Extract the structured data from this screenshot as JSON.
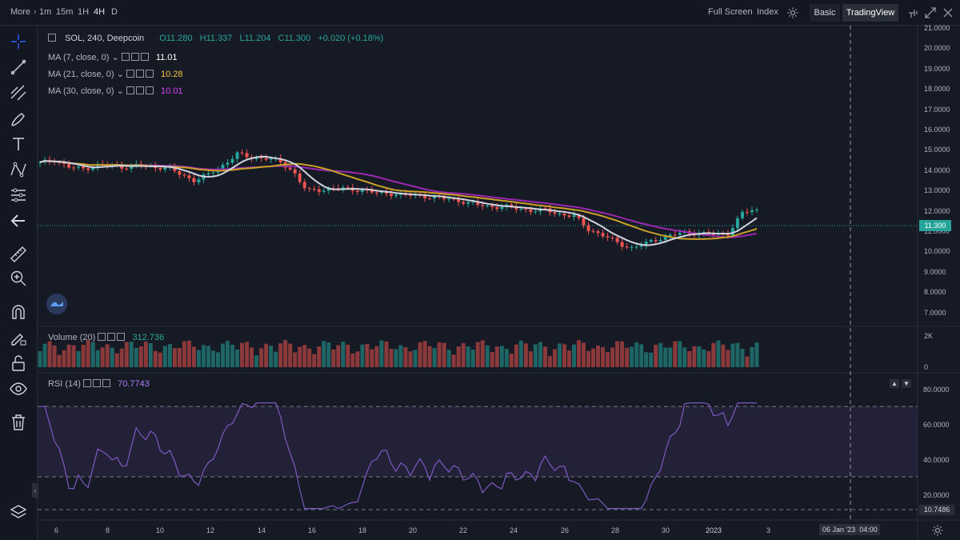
{
  "topbar": {
    "more": "More",
    "intervals": [
      "1m",
      "15m",
      "1H",
      "4H",
      "D"
    ],
    "active_interval": "4H",
    "full_screen": "Full Screen",
    "index": "Index",
    "basic": "Basic",
    "tradingview": "TradingView"
  },
  "legend": {
    "symbol": "SOL, 240, Deepcoin",
    "open": "O11.280",
    "high": "H11.337",
    "low": "L11.204",
    "close": "C11.300",
    "change": "+0.020 (+0.18%)",
    "ma7_label": "MA (7, close, 0)",
    "ma7_value": "11.01",
    "ma21_label": "MA (21, close, 0)",
    "ma21_value": "10.28",
    "ma30_label": "MA (30, close, 0)",
    "ma30_value": "10.01",
    "volume_label": "Volume (20)",
    "volume_value": "312.736",
    "rsi_label": "RSI (14)",
    "rsi_value": "70.7743"
  },
  "price_axis": [
    "21.0000",
    "20.0000",
    "19.0000",
    "18.0000",
    "17.0000",
    "16.0000",
    "15.0000",
    "14.0000",
    "13.0000",
    "12.0000",
    "11.0000",
    "10.0000",
    "9.0000",
    "8.0000",
    "7.0000"
  ],
  "last_price": "11.300",
  "volume_axis": [
    "2K",
    "0"
  ],
  "rsi_axis": [
    "80.0000",
    "60.0000",
    "40.0000",
    "20.0000"
  ],
  "rsi_cross": "10.7486",
  "time_axis": [
    "6",
    "8",
    "10",
    "12",
    "14",
    "16",
    "18",
    "20",
    "22",
    "24",
    "26",
    "28",
    "30",
    "2023",
    "3"
  ],
  "crosshair_time": "06 Jan '23",
  "crosshair_clock": "04:00",
  "colors": {
    "up": "#26a69a",
    "down": "#ef5350",
    "ma7": "#d1d4dc",
    "ma21": "#c9a227",
    "ma30": "#9c27b0",
    "rsi": "#7e57c2",
    "background": "#161a25"
  },
  "chart_data": {
    "type": "line",
    "x_dates": "Dec 5 2022 to Jan 3 2023 (4H candles)",
    "approx_close": [
      13.8,
      14.0,
      13.6,
      13.5,
      13.7,
      13.7,
      13.6,
      13.7,
      13.6,
      13.6,
      13.2,
      12.9,
      13.2,
      13.7,
      14.3,
      14.1,
      14.1,
      13.9,
      13.4,
      12.3,
      12.4,
      12.5,
      12.4,
      12.4,
      12.2,
      12.2,
      12.1,
      12.1,
      12.0,
      11.9,
      11.8,
      11.6,
      11.5,
      11.5,
      11.4,
      11.3,
      11.3,
      11.1,
      11.0,
      10.3,
      10.0,
      9.6,
      9.3,
      9.5,
      9.8,
      10.0,
      10.1,
      10.1,
      10.0,
      10.1,
      11.2,
      11.3
    ],
    "ma7_last": 11.01,
    "ma21_last": 10.28,
    "ma30_last": 10.01,
    "ylim": [
      7,
      21
    ],
    "rsi_last": 70.7743
  }
}
